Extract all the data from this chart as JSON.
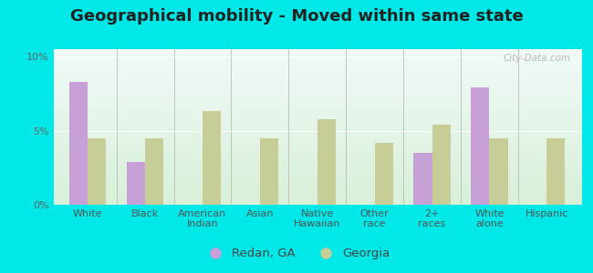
{
  "title": "Geographical mobility - Moved within same state",
  "categories": [
    "White",
    "Black",
    "American\nIndian",
    "Asian",
    "Native\nHawaiian",
    "Other\nrace",
    "2+\nraces",
    "White\nalone",
    "Hispanic"
  ],
  "redan_values": [
    8.3,
    2.9,
    0,
    0,
    0,
    0,
    3.5,
    7.9,
    0
  ],
  "georgia_values": [
    4.5,
    4.5,
    6.3,
    4.5,
    5.8,
    4.2,
    5.4,
    4.5,
    4.5
  ],
  "redan_color": "#c8a0d8",
  "georgia_color": "#c8cc96",
  "outer_bg": "#00e8e8",
  "plot_bg_top": "#f0faf8",
  "plot_bg_bottom": "#d8f0d8",
  "ylim": [
    0,
    10.5
  ],
  "yticks": [
    0,
    5,
    10
  ],
  "ytick_labels": [
    "0%",
    "5%",
    "10%"
  ],
  "bar_width": 0.32,
  "legend_labels": [
    "Redan, GA",
    "Georgia"
  ],
  "watermark": "City-Data.com",
  "title_fontsize": 13,
  "tick_fontsize": 8,
  "legend_fontsize": 9.5
}
